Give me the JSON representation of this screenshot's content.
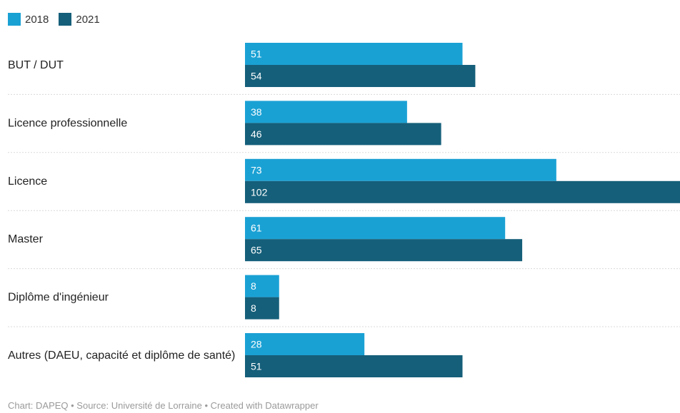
{
  "chart_data": {
    "type": "bar",
    "orientation": "horizontal",
    "categories": [
      "BUT / DUT",
      "Licence professionnelle",
      "Licence",
      "Master",
      "Diplôme d'ingénieur",
      "Autres (DAEU, capacité et diplôme de santé)"
    ],
    "series": [
      {
        "name": "2018",
        "color": "#1aa1d4",
        "values": [
          51,
          38,
          73,
          61,
          8,
          28
        ]
      },
      {
        "name": "2021",
        "color": "#155f7a",
        "values": [
          54,
          46,
          102,
          65,
          8,
          51
        ]
      }
    ],
    "xlim": [
      0,
      102
    ],
    "grid": false,
    "legend": "top-left",
    "data_labels": true
  },
  "footer": {
    "text": "Chart: DAPEQ • Source: Université de Lorraine • Created with Datawrapper"
  }
}
